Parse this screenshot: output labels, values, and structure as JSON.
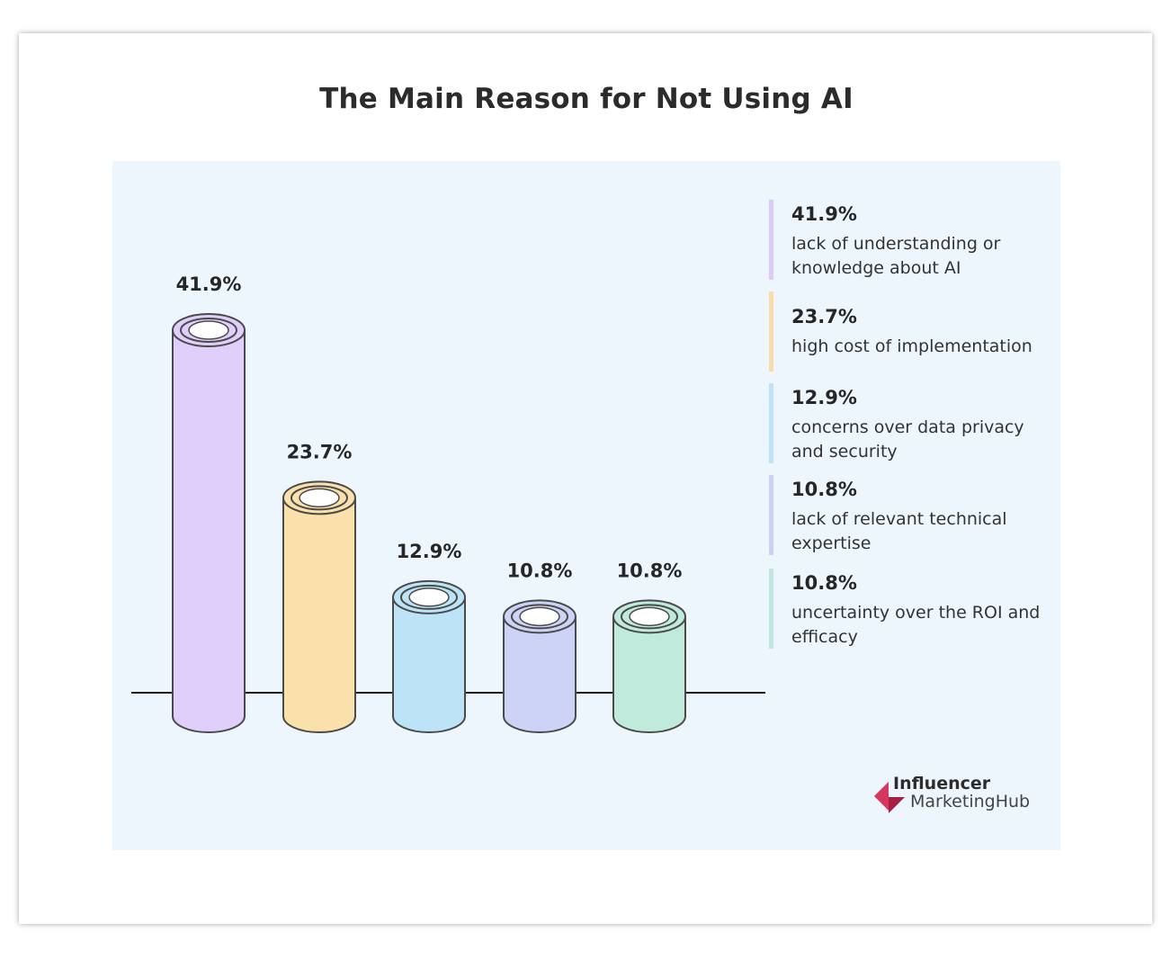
{
  "title": "The Main Reason for Not Using AI",
  "chart_data": {
    "type": "bar",
    "title": "The Main Reason for Not Using AI",
    "categories": [
      "lack of understanding or knowledge about AI",
      "high cost of implementation",
      "concerns over data privacy and security",
      "lack of relevant technical expertise",
      "uncertainty over the ROI and efficacy"
    ],
    "values": [
      41.9,
      23.7,
      12.9,
      10.8,
      10.8
    ],
    "value_labels": [
      "41.9%",
      "23.7%",
      "12.9%",
      "10.8%",
      "10.8%"
    ],
    "colors": [
      "#e0cffa",
      "#fae0ab",
      "#bde4f6",
      "#cdd3f6",
      "#c0eadc"
    ],
    "legend_colors": [
      "#dccbf8",
      "#f9dca8",
      "#bfe3f5",
      "#ccd2f5",
      "#bfe8da"
    ],
    "legend_placement": "right",
    "ylim": [
      0,
      41.9
    ]
  },
  "legend": [
    {
      "value": "41.9%",
      "label": "lack of understanding or knowledge about AI"
    },
    {
      "value": "23.7%",
      "label": "high cost of implementation"
    },
    {
      "value": "12.9%",
      "label": "concerns over data privacy and security"
    },
    {
      "value": "10.8%",
      "label": "lack of relevant technical expertise"
    },
    {
      "value": "10.8%",
      "label": "uncertainty over the ROI and efficacy"
    }
  ],
  "logo": {
    "line1": "Influencer",
    "line2": "MarketingHub",
    "icon": "influencer-marketinghub-logo-icon",
    "color": "#d8365c"
  }
}
